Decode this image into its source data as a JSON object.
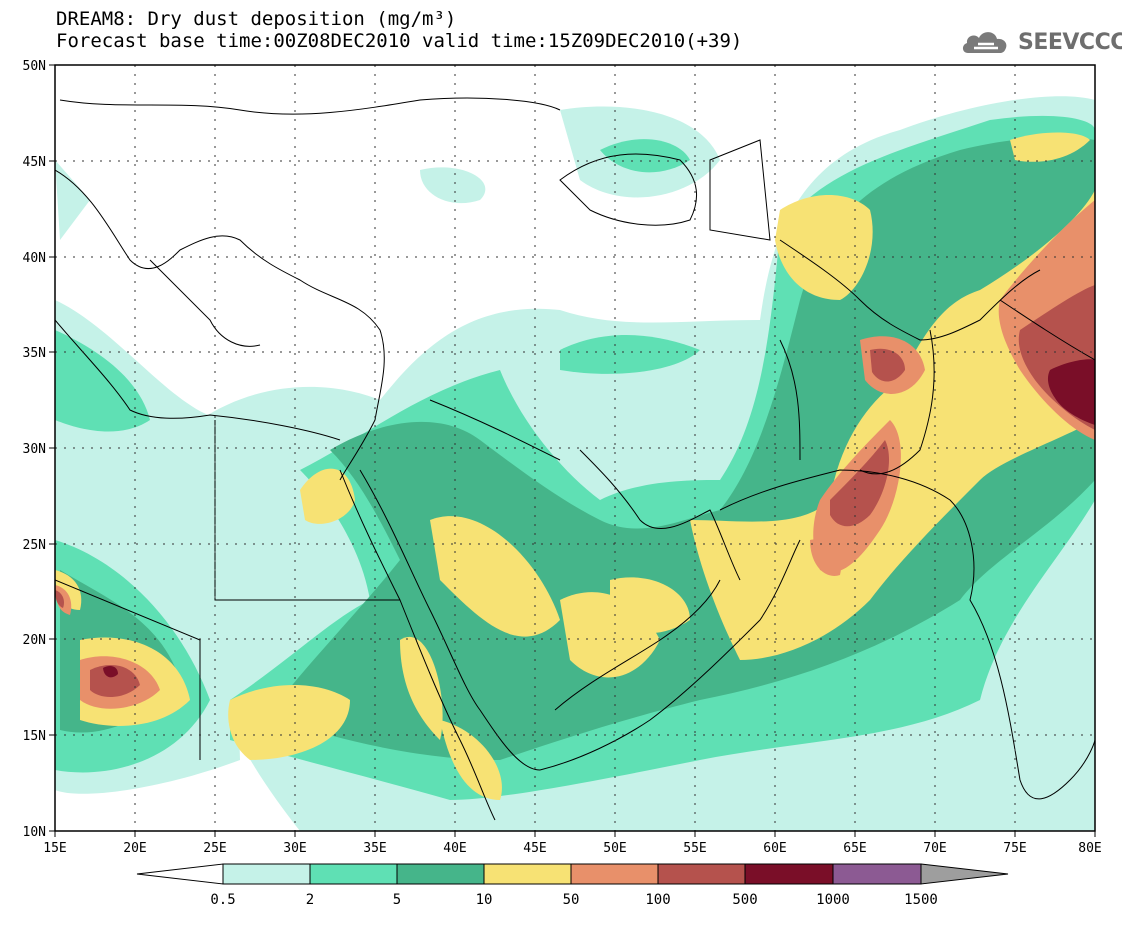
{
  "title": {
    "line1": "DREAM8: Dry dust deposition (mg/m³)",
    "line2": "Forecast base time:00Z08DEC2010 valid time:15Z09DEC2010(+39)"
  },
  "logo": {
    "text": "SEEVCCC",
    "icon": "cloud-icon"
  },
  "map": {
    "lat_labels": [
      "50N",
      "45N",
      "40N",
      "35N",
      "30N",
      "25N",
      "20N",
      "15N",
      "10N"
    ],
    "lon_labels": [
      "15E",
      "20E",
      "25E",
      "30E",
      "35E",
      "40E",
      "45E",
      "50E",
      "55E",
      "60E",
      "65E",
      "70E",
      "75E",
      "80E"
    ],
    "lon_range": [
      15,
      80
    ],
    "lat_range": [
      10,
      50
    ],
    "grid": true
  },
  "legend": {
    "colors": [
      "#ffffff",
      "#c5f2e8",
      "#5fe0b4",
      "#45b58a",
      "#f7e274",
      "#e8906a",
      "#b5524d",
      "#7a0e28",
      "#8c5a93",
      "#9e9e9e"
    ],
    "labels": [
      "0.5",
      "2",
      "5",
      "10",
      "50",
      "100",
      "500",
      "1000",
      "1500"
    ]
  }
}
